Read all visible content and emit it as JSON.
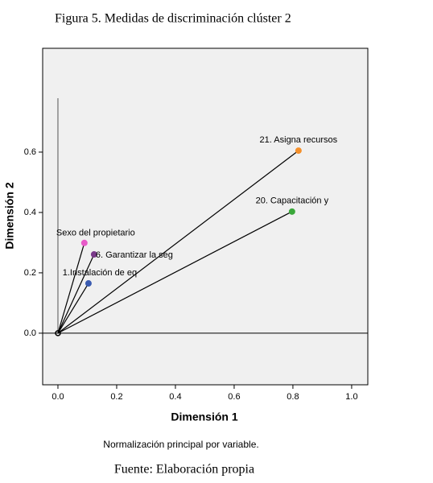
{
  "chart_data": {
    "type": "scatter",
    "title": "Figura 5. Medidas de discriminación clúster 2",
    "xlabel": "Dimensión 1",
    "ylabel": "Dimensión 2",
    "note": "Normalización principal por variable.",
    "source": "Fuente: Elaboración propia",
    "xlim": [
      -0.052,
      1.055
    ],
    "ylim": [
      -0.171,
      0.944
    ],
    "xticks": [
      {
        "value": 0,
        "label": "0.0"
      },
      0.2,
      0.4,
      0.6,
      0.8,
      {
        "value": 1,
        "label": "1.0"
      }
    ],
    "yticks": [
      {
        "value": 0,
        "label": "0.0"
      },
      0.2,
      0.4,
      0.6
    ],
    "series": [
      {
        "name": "21. Asigna recursos",
        "color": "#f5902b",
        "x": [
          0.819
        ],
        "values": [
          0.605
        ]
      },
      {
        "name": "20. Capacitación y",
        "color": "#3aa83a",
        "x": [
          0.797
        ],
        "values": [
          0.403
        ]
      },
      {
        "name": "Sexo del propietario",
        "color": "#e85bc9",
        "x": [
          0.09
        ],
        "values": [
          0.299
        ]
      },
      {
        "name": "6. Garantizar la seg",
        "color": "#7a3a8a",
        "x": [
          0.123
        ],
        "values": [
          0.261
        ]
      },
      {
        "name": "1.Instalación de eq",
        "color": "#3a5bb0",
        "x": [
          0.104
        ],
        "values": [
          0.165
        ]
      }
    ]
  }
}
